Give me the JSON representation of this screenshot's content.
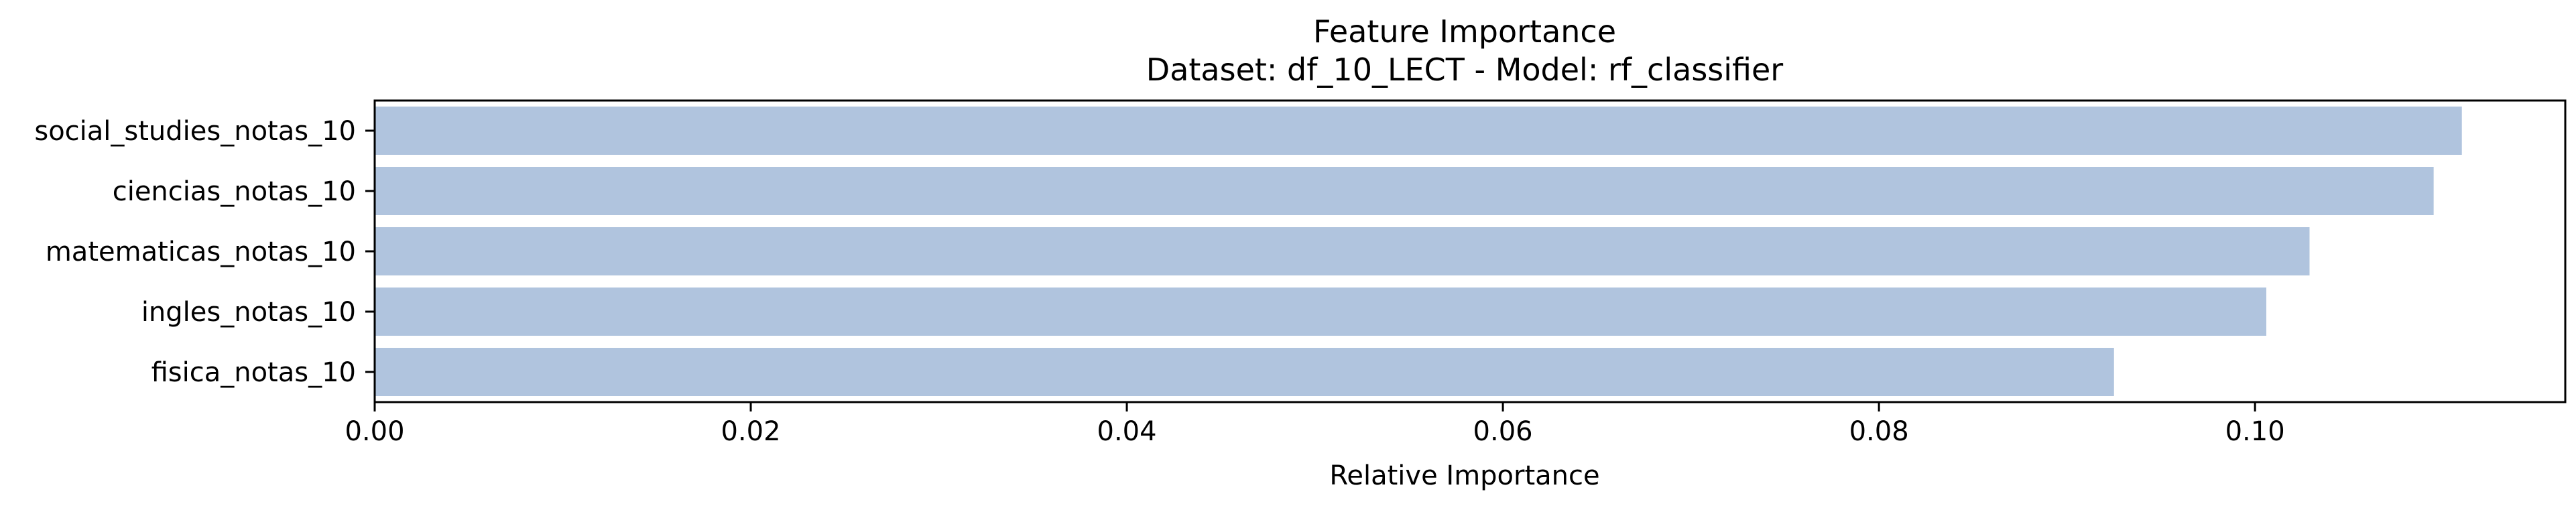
{
  "chart_data": {
    "type": "bar",
    "orientation": "horizontal",
    "title": "Feature Importance",
    "subtitle": "Dataset: df_10_LECT  -  Model: rf_classifier",
    "xlabel": "Relative Importance",
    "ylabel": "",
    "categories": [
      "social_studies_notas_10",
      "ciencias_notas_10",
      "matematicas_notas_10",
      "ingles_notas_10",
      "fisica_notas_10"
    ],
    "values": [
      0.111,
      0.1095,
      0.1029,
      0.1006,
      0.0925
    ],
    "xlim": [
      0,
      0.1165
    ],
    "xticks": [
      {
        "value": 0.0,
        "label": "0.00"
      },
      {
        "value": 0.02,
        "label": "0.02"
      },
      {
        "value": 0.04,
        "label": "0.04"
      },
      {
        "value": 0.06,
        "label": "0.06"
      },
      {
        "value": 0.08,
        "label": "0.08"
      },
      {
        "value": 0.1,
        "label": "0.10"
      }
    ],
    "grid": false,
    "legend": "none",
    "bar_color": "#b0c4de"
  }
}
